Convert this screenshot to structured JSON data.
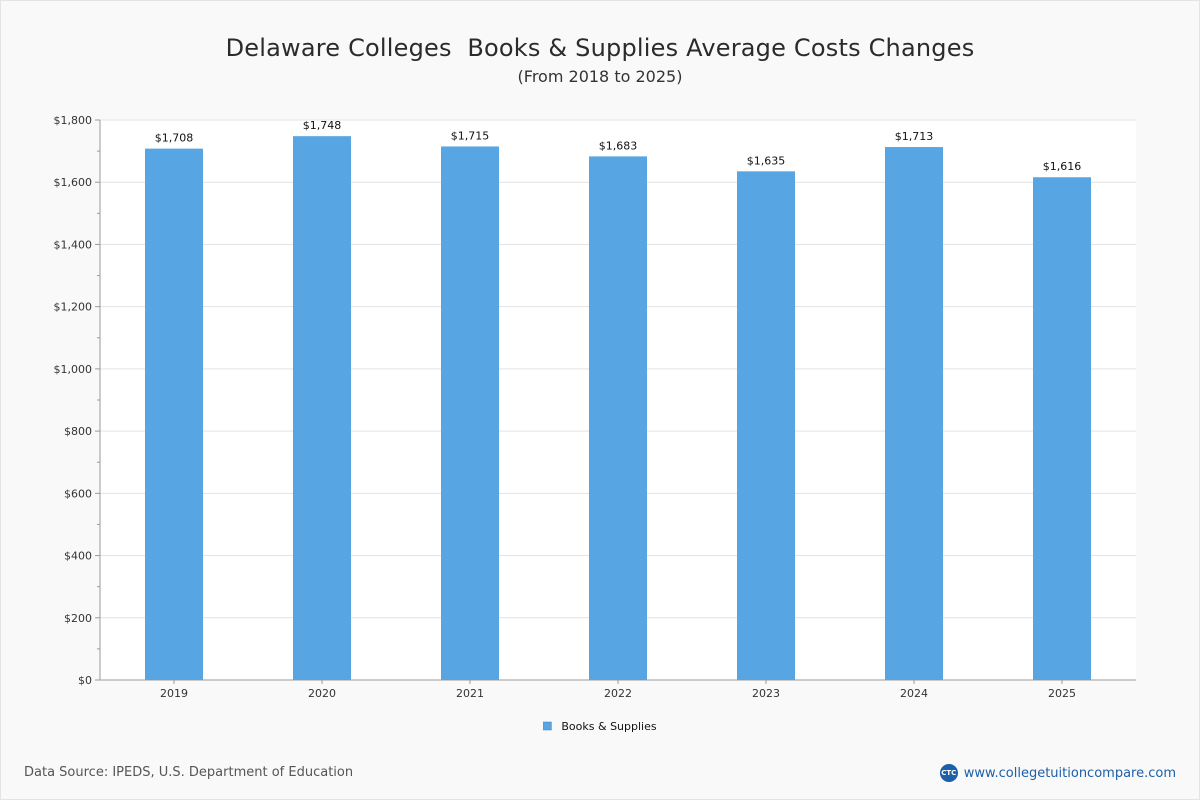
{
  "header": {
    "title": "Delaware Colleges  Books & Supplies Average Costs Changes",
    "subtitle": "(From 2018 to 2025)"
  },
  "chart_data": {
    "type": "bar",
    "categories": [
      "2019",
      "2020",
      "2021",
      "2022",
      "2023",
      "2024",
      "2025"
    ],
    "series": [
      {
        "name": "Books & Supplies",
        "values": [
          1708,
          1748,
          1715,
          1683,
          1635,
          1713,
          1616
        ],
        "value_labels": [
          "$1,708",
          "$1,748",
          "$1,715",
          "$1,683",
          "$1,635",
          "$1,713",
          "$1,616"
        ],
        "color": "#57a5e2"
      }
    ],
    "ylim": [
      0,
      1800
    ],
    "yticks": [
      "$0",
      "$200",
      "$400",
      "$600",
      "$800",
      "$1,000",
      "$1,200",
      "$1,400",
      "$1,600",
      "$1,800"
    ],
    "grid": true,
    "legend": "bottom-center"
  },
  "footer": {
    "source": "Data Source: IPEDS, U.S. Department of Education",
    "logo_text": "CTC",
    "site": "www.collegetuitioncompare.com"
  }
}
